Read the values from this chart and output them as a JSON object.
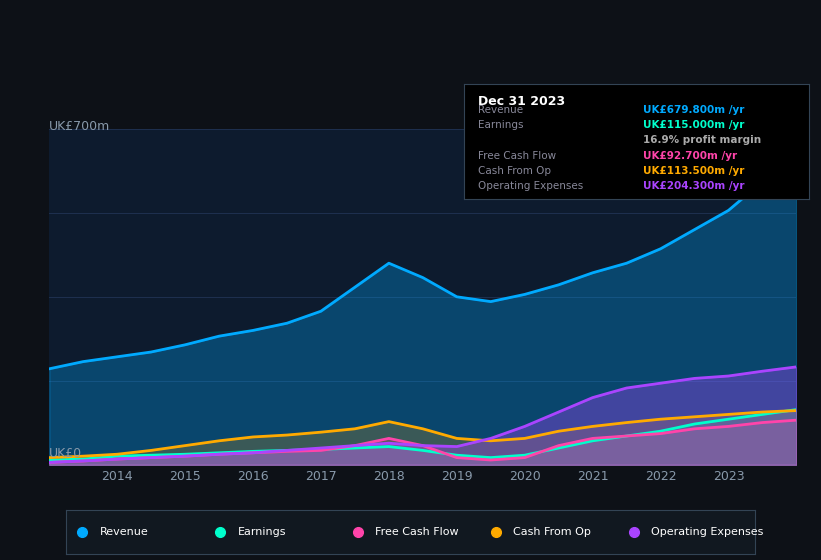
{
  "background_color": "#0d1117",
  "plot_bg_color": "#0d1b2e",
  "title_box": {
    "date": "Dec 31 2023",
    "rows": [
      {
        "label": "Revenue",
        "value": "UK£679.800m /yr",
        "value_color": "#00aaff"
      },
      {
        "label": "Earnings",
        "value": "UK£115.000m /yr",
        "value_color": "#00ff99"
      },
      {
        "label": "",
        "value": "16.9% profit margin",
        "value_color": "#cccccc"
      },
      {
        "label": "Free Cash Flow",
        "value": "UK£92.700m /yr",
        "value_color": "#ff44aa"
      },
      {
        "label": "Cash From Op",
        "value": "UK£113.500m /yr",
        "value_color": "#ffaa00"
      },
      {
        "label": "Operating Expenses",
        "value": "UK£204.300m /yr",
        "value_color": "#aa44ff"
      }
    ]
  },
  "ylabel_top": "UK£700m",
  "ylabel_bottom": "UK£0",
  "years": [
    2013.0,
    2013.5,
    2014.0,
    2014.5,
    2015.0,
    2015.5,
    2016.0,
    2016.5,
    2017.0,
    2017.5,
    2018.0,
    2018.5,
    2019.0,
    2019.5,
    2020.0,
    2020.5,
    2021.0,
    2021.5,
    2022.0,
    2022.5,
    2023.0,
    2023.5,
    2024.0
  ],
  "revenue": [
    200,
    215,
    225,
    235,
    250,
    268,
    280,
    295,
    320,
    370,
    420,
    390,
    350,
    340,
    355,
    375,
    400,
    420,
    450,
    490,
    530,
    590,
    680
  ],
  "earnings": [
    10,
    12,
    18,
    20,
    22,
    25,
    28,
    30,
    32,
    35,
    38,
    30,
    20,
    15,
    20,
    35,
    50,
    60,
    70,
    85,
    95,
    105,
    115
  ],
  "fcf": [
    5,
    8,
    12,
    15,
    18,
    22,
    25,
    28,
    30,
    40,
    55,
    40,
    15,
    10,
    15,
    40,
    55,
    60,
    65,
    75,
    80,
    88,
    93
  ],
  "cashfromop": [
    15,
    18,
    22,
    30,
    40,
    50,
    58,
    62,
    68,
    75,
    90,
    75,
    55,
    50,
    55,
    70,
    80,
    88,
    95,
    100,
    105,
    110,
    113
  ],
  "opex": [
    5,
    8,
    12,
    15,
    18,
    22,
    25,
    30,
    35,
    40,
    45,
    40,
    38,
    55,
    80,
    110,
    140,
    160,
    170,
    180,
    185,
    195,
    204
  ],
  "revenue_color": "#00aaff",
  "earnings_color": "#00ffcc",
  "fcf_color": "#ff44aa",
  "cashfromop_color": "#ffaa00",
  "opex_color": "#aa44ff",
  "line_width": 2.0,
  "fill_alpha": 0.25,
  "grid_color": "#1e3050",
  "tick_color": "#8899aa",
  "legend_bg": "#111820",
  "legend_border": "#334455"
}
